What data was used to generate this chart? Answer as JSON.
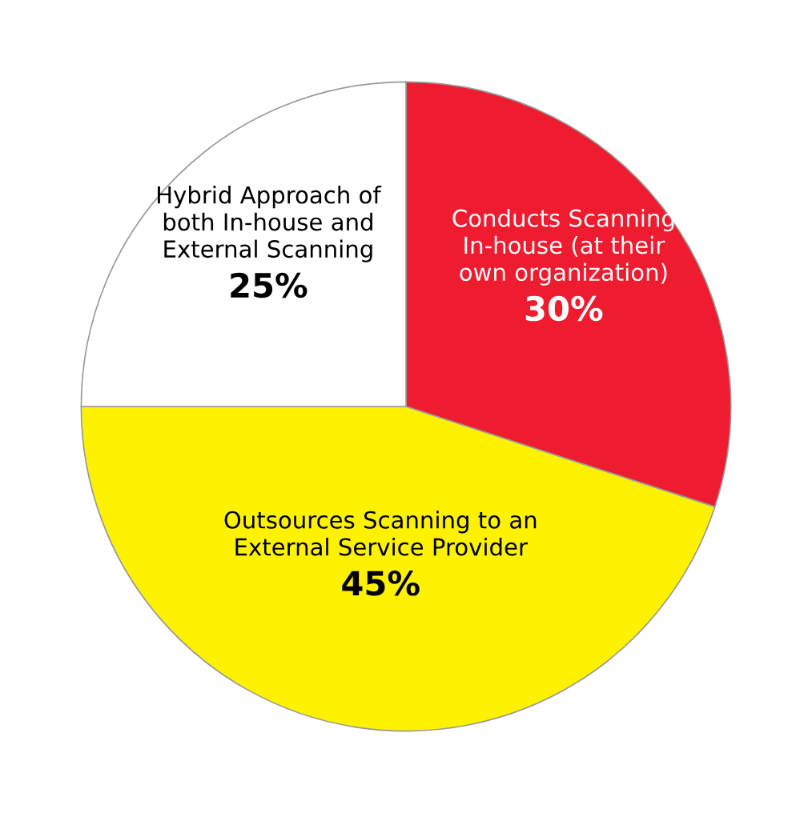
{
  "chart_data": {
    "type": "pie",
    "categories": [
      "Conducts Scanning\nIn-house (at their\nown organization)",
      "Outsources Scanning to an\nExternal Service Provider",
      "Hybrid Approach of\nboth In-house and\nExternal Scanning"
    ],
    "values": [
      30,
      45,
      25
    ],
    "value_labels": [
      "30%",
      "45%",
      "25%"
    ],
    "colors": [
      "#ee1c2e",
      "#fff200",
      "#ffffff"
    ],
    "legend": false
  }
}
